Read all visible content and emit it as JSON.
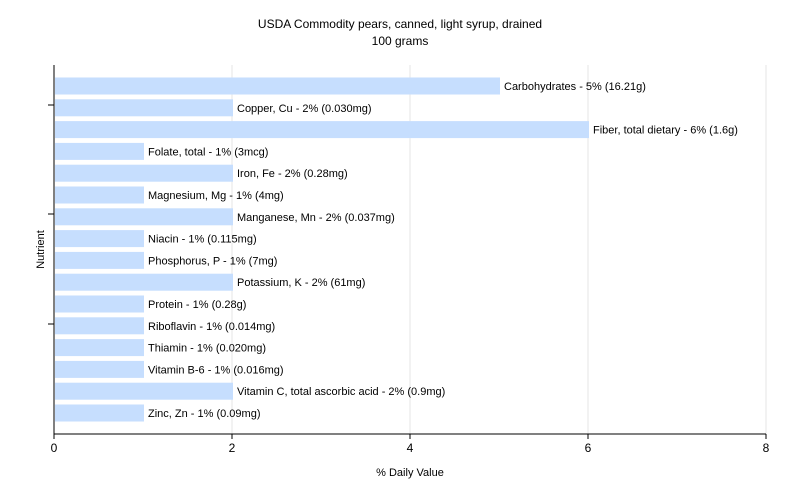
{
  "chart_data": {
    "type": "bar",
    "orientation": "horizontal",
    "title": "USDA Commodity pears, canned, light syrup, drained",
    "subtitle": "100 grams",
    "xlabel": "% Daily Value",
    "ylabel": "Nutrient",
    "xlim": [
      0,
      8
    ],
    "xticks": [
      0,
      2,
      4,
      6,
      8
    ],
    "grid": true,
    "bar_color": "#c6defe",
    "categories": [
      "Carbohydrates - 5% (16.21g)",
      "Copper, Cu - 2% (0.030mg)",
      "Fiber, total dietary - 6% (1.6g)",
      "Folate, total - 1% (3mcg)",
      "Iron, Fe - 2% (0.28mg)",
      "Magnesium, Mg - 1% (4mg)",
      "Manganese, Mn - 2% (0.037mg)",
      "Niacin - 1% (0.115mg)",
      "Phosphorus, P - 1% (7mg)",
      "Potassium, K - 2% (61mg)",
      "Protein - 1% (0.28g)",
      "Riboflavin - 1% (0.014mg)",
      "Thiamin - 1% (0.020mg)",
      "Vitamin B-6 - 1% (0.016mg)",
      "Vitamin C, total ascorbic acid - 2% (0.9mg)",
      "Zinc, Zn - 1% (0.09mg)"
    ],
    "values": [
      5,
      2,
      6,
      1,
      2,
      1,
      2,
      1,
      1,
      2,
      1,
      1,
      1,
      1,
      2,
      1
    ]
  }
}
